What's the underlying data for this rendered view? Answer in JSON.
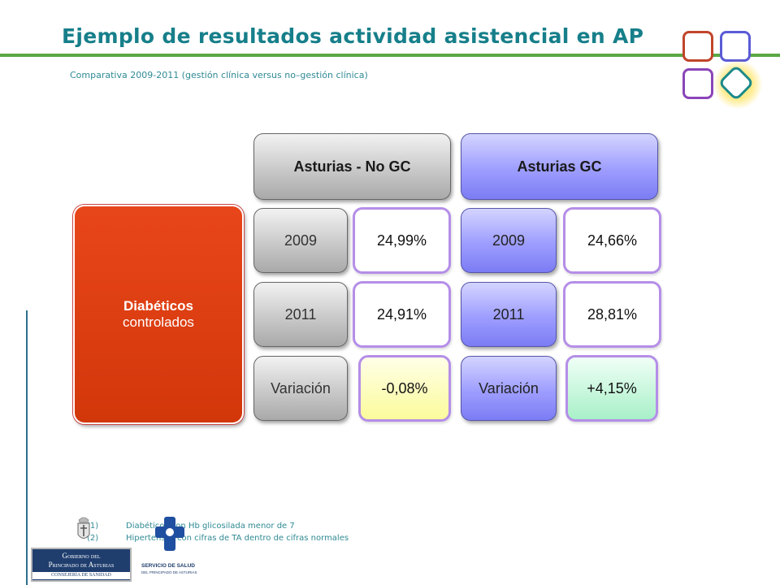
{
  "title": "Ejemplo de resultados actividad asistencial  en AP",
  "subtitle": "Comparativa 2009-2011 (gestión clínica versus no–gestión clínica)",
  "row_label": {
    "line1": "Diabéticos",
    "line2": "controlados"
  },
  "groups": [
    {
      "header": "Asturias - No GC",
      "rows": [
        {
          "label": "2009",
          "value": "24,99%"
        },
        {
          "label": "2011",
          "value": "24,91%"
        },
        {
          "label": "Variación",
          "value": "-0,08%"
        }
      ]
    },
    {
      "header": "Asturias GC",
      "rows": [
        {
          "label": "2009",
          "value": "24,66%"
        },
        {
          "label": "2011",
          "value": "28,81%"
        },
        {
          "label": "Variación",
          "value": "+4,15%"
        }
      ]
    }
  ],
  "footnotes": [
    {
      "num": "(1)",
      "text": "Diabéticos  con Hb glicosilada menor de 7"
    },
    {
      "num": "(2)",
      "text": "Hipertensos con cifras de TA dentro  de cifras normales"
    }
  ],
  "logos": {
    "gobierno_line1": "Gobierno del",
    "gobierno_line2": "Principado de Asturias",
    "consejeria": "CONSEJERÍA DE SANIDAD",
    "sespa_line1": "SERVICIO DE SALUD",
    "sespa_line2": "DEL PRINCIPADO DE ASTURIAS"
  },
  "colors": {
    "title": "#167f8a",
    "rule": "#5aa843",
    "diabeticos_box": "#d93c0e",
    "value_border": "#b58ee8",
    "variation_negative": "#fbfb9c",
    "variation_positive": "#a8f0c8"
  }
}
